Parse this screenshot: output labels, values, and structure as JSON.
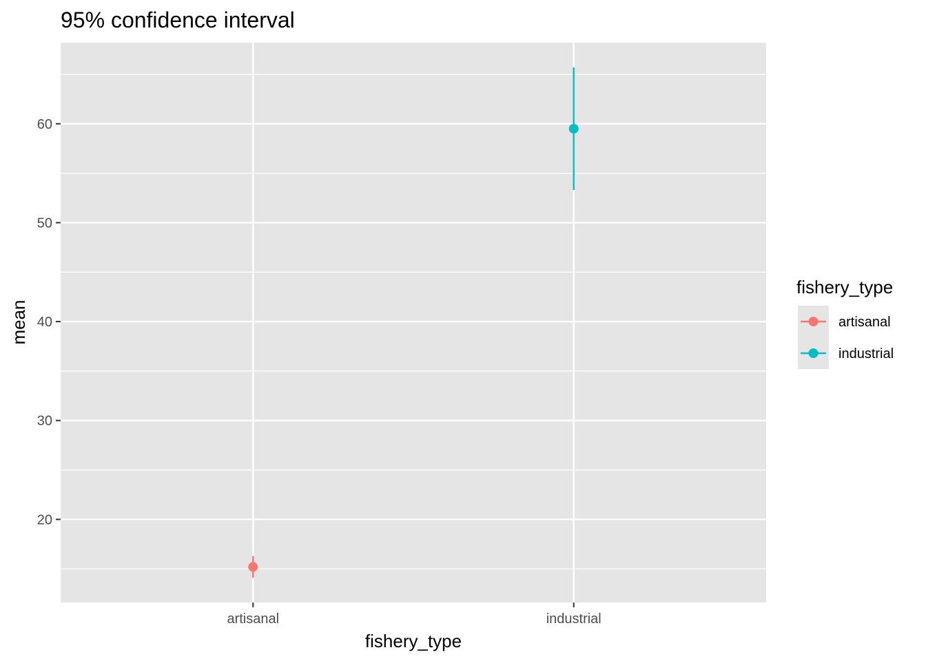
{
  "chart_data": {
    "type": "scatter",
    "title": "95% confidence interval",
    "xlabel": "fishery_type",
    "ylabel": "mean",
    "categories": [
      "artisanal",
      "industrial"
    ],
    "ylim": [
      11.6,
      68.2
    ],
    "yticks": [
      20,
      30,
      40,
      50,
      60
    ],
    "grid": true,
    "legend": {
      "title": "fishery_type",
      "position": "right",
      "entries": [
        "artisanal",
        "industrial"
      ]
    },
    "series": [
      {
        "name": "artisanal",
        "color": "#F8766D",
        "mean": 15.2,
        "lower": 14.1,
        "upper": 16.3
      },
      {
        "name": "industrial",
        "color": "#00BFC4",
        "mean": 59.5,
        "lower": 53.3,
        "upper": 65.7
      }
    ],
    "colors": {
      "panel": "#E5E5E5",
      "grid": "#FFFFFF",
      "tick": "#333333"
    }
  }
}
